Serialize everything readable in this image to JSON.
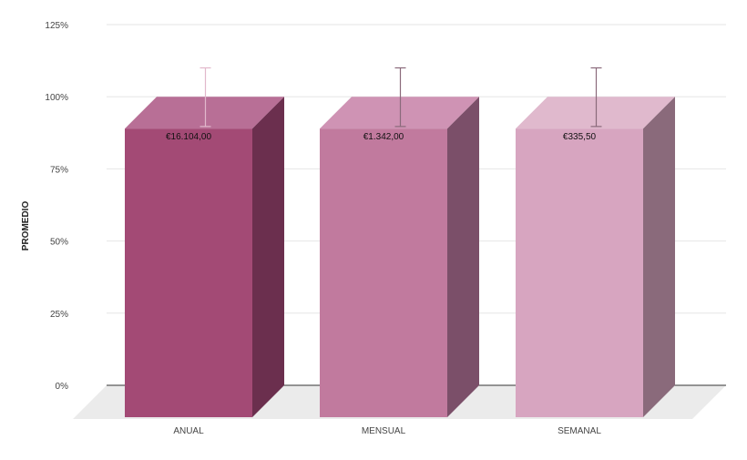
{
  "chart_data": {
    "type": "bar",
    "three_d": true,
    "categories": [
      "ANUAL",
      "MENSUAL",
      "SEMANAL"
    ],
    "values": [
      100,
      100,
      100
    ],
    "error_low": [
      90,
      90,
      90
    ],
    "error_high": [
      110,
      110,
      110
    ],
    "data_labels": [
      "€16.104,00",
      "€1.342,00",
      "€335,50"
    ],
    "ylabel": "PROMEDIO",
    "xlabel": "",
    "ylim": [
      0,
      125
    ],
    "yticks": [
      0,
      25,
      50,
      75,
      100,
      125
    ],
    "ytick_labels": [
      "0%",
      "25%",
      "50%",
      "75%",
      "100%",
      "125%"
    ],
    "grid": true,
    "legend": "none",
    "colors": [
      {
        "front": "#a34a75",
        "top": "#b86f96",
        "side": "#6b2f4e",
        "error": "#e2b8cb"
      },
      {
        "front": "#c17a9e",
        "top": "#cf93b4",
        "side": "#7b4f69",
        "error": "#8a6a7b"
      },
      {
        "front": "#d7a5c0",
        "top": "#e0b9cd",
        "side": "#8a6a7b",
        "error": "#8a6a7b"
      }
    ]
  }
}
